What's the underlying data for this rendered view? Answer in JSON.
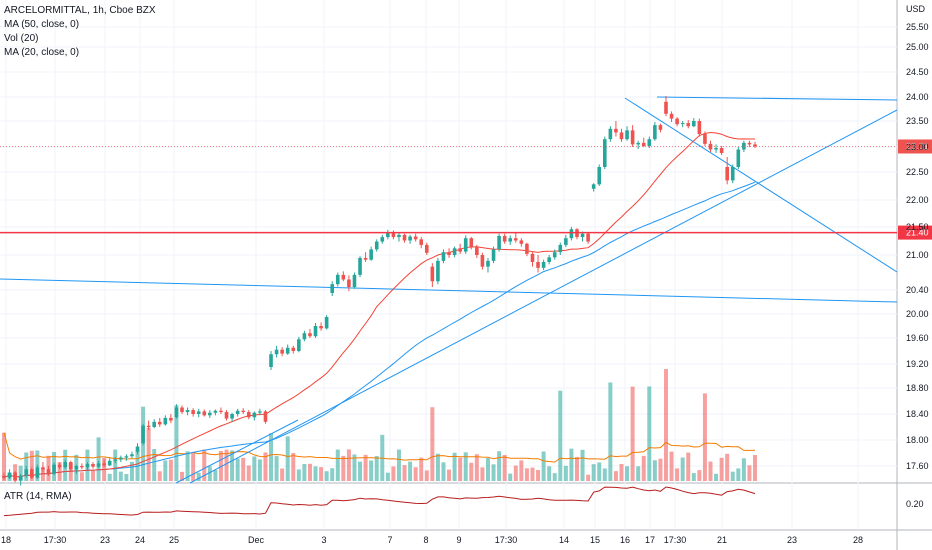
{
  "legend": {
    "symbol": "ARCELORMITTAL, 1h, Cboe BZX",
    "ma50": "MA (50, close, 0)",
    "vol": "Vol (20)",
    "ma20": "MA (20, close, 0)",
    "atr": "ATR (14, RMA)"
  },
  "chart_data": {
    "type": "candlestick",
    "currency": "USD",
    "y_ticks": [
      "25.50",
      "25.00",
      "24.50",
      "24.00",
      "23.50",
      "23.00",
      "22.50",
      "22.00",
      "21.50",
      "21.00",
      "20.40",
      "20.00",
      "19.60",
      "19.20",
      "18.80",
      "18.40",
      "18.00",
      "17.60"
    ],
    "y_tick_values": [
      25.5,
      25.0,
      24.5,
      24.0,
      23.5,
      23.0,
      22.5,
      22.0,
      21.5,
      21.0,
      20.4,
      20.0,
      19.6,
      19.2,
      18.8,
      18.4,
      18.0,
      17.6
    ],
    "atr_tick": "0.20",
    "x_labels": [
      "18",
      "17:30",
      "23",
      "24",
      "25",
      "Dec",
      "3",
      "7",
      "8",
      "9",
      "17:30",
      "14",
      "15",
      "16",
      "17",
      "17:30",
      "21",
      "23",
      "28"
    ],
    "last_price": {
      "label": "23.01",
      "value": 23.01,
      "color": "#ef5350"
    },
    "level": {
      "label": "21.40",
      "value": 21.4,
      "color": "#f23645"
    },
    "colors": {
      "up": "#26a69a",
      "down": "#ef5350",
      "ma": "#2196f3",
      "ma20": "#f44336",
      "vol_ma": "#f57c00",
      "atr": "#b71c1c"
    },
    "candles": [
      [
        17.45,
        17.5,
        17.38,
        17.42
      ],
      [
        17.42,
        17.55,
        17.4,
        17.5
      ],
      [
        17.5,
        17.52,
        17.35,
        17.38
      ],
      [
        17.38,
        17.48,
        17.3,
        17.45
      ],
      [
        17.45,
        17.6,
        17.42,
        17.55
      ],
      [
        17.55,
        17.58,
        17.4,
        17.42
      ],
      [
        17.42,
        17.62,
        17.4,
        17.58
      ],
      [
        17.58,
        17.66,
        17.5,
        17.55
      ],
      [
        17.55,
        17.6,
        17.45,
        17.48
      ],
      [
        17.48,
        17.65,
        17.46,
        17.62
      ],
      [
        17.62,
        17.65,
        17.55,
        17.58
      ],
      [
        17.58,
        17.7,
        17.56,
        17.66
      ],
      [
        17.66,
        17.68,
        17.52,
        17.55
      ],
      [
        17.55,
        17.62,
        17.48,
        17.6
      ],
      [
        17.6,
        17.64,
        17.55,
        17.58
      ],
      [
        17.58,
        17.66,
        17.54,
        17.63
      ],
      [
        17.63,
        17.66,
        17.56,
        17.59
      ],
      [
        17.59,
        17.68,
        17.57,
        17.64
      ],
      [
        17.64,
        17.7,
        17.58,
        17.61
      ],
      [
        17.61,
        17.72,
        17.6,
        17.68
      ],
      [
        17.68,
        17.74,
        17.64,
        17.7
      ],
      [
        17.7,
        17.76,
        17.66,
        17.73
      ],
      [
        17.73,
        17.78,
        17.68,
        17.75
      ],
      [
        17.75,
        17.82,
        17.72,
        17.78
      ],
      [
        17.82,
        17.95,
        17.78,
        17.9
      ],
      [
        17.95,
        18.25,
        17.92,
        18.22
      ],
      [
        18.22,
        18.3,
        18.15,
        18.2
      ],
      [
        18.2,
        18.32,
        18.18,
        18.28
      ],
      [
        18.28,
        18.34,
        18.2,
        18.24
      ],
      [
        18.24,
        18.38,
        18.22,
        18.34
      ],
      [
        18.34,
        18.4,
        18.26,
        18.3
      ],
      [
        18.35,
        18.55,
        18.33,
        18.5
      ],
      [
        18.5,
        18.53,
        18.4,
        18.43
      ],
      [
        18.43,
        18.5,
        18.38,
        18.46
      ],
      [
        18.46,
        18.49,
        18.36,
        18.4
      ],
      [
        18.4,
        18.48,
        18.35,
        18.44
      ],
      [
        18.44,
        18.47,
        18.36,
        18.38
      ],
      [
        18.38,
        18.46,
        18.34,
        18.42
      ],
      [
        18.42,
        18.47,
        18.38,
        18.45
      ],
      [
        18.45,
        18.5,
        18.4,
        18.43
      ],
      [
        18.43,
        18.46,
        18.3,
        18.33
      ],
      [
        18.33,
        18.42,
        18.28,
        18.4
      ],
      [
        18.4,
        18.48,
        18.36,
        18.45
      ],
      [
        18.45,
        18.49,
        18.4,
        18.43
      ],
      [
        18.43,
        18.46,
        18.32,
        18.35
      ],
      [
        18.35,
        18.44,
        18.3,
        18.42
      ],
      [
        18.42,
        18.48,
        18.38,
        18.44
      ],
      [
        18.44,
        18.46,
        18.25,
        18.28
      ],
      [
        19.15,
        19.4,
        19.1,
        19.35
      ],
      [
        19.35,
        19.48,
        19.3,
        19.42
      ],
      [
        19.42,
        19.46,
        19.32,
        19.36
      ],
      [
        19.36,
        19.5,
        19.34,
        19.45
      ],
      [
        19.45,
        19.48,
        19.36,
        19.4
      ],
      [
        19.4,
        19.62,
        19.38,
        19.58
      ],
      [
        19.58,
        19.72,
        19.55,
        19.68
      ],
      [
        19.68,
        19.75,
        19.6,
        19.63
      ],
      [
        19.63,
        19.85,
        19.6,
        19.8
      ],
      [
        19.8,
        19.86,
        19.72,
        19.76
      ],
      [
        19.76,
        19.98,
        19.74,
        19.95
      ],
      [
        20.35,
        20.55,
        20.3,
        20.5
      ],
      [
        20.5,
        20.7,
        20.46,
        20.66
      ],
      [
        20.66,
        20.72,
        20.55,
        20.58
      ],
      [
        20.58,
        20.65,
        20.38,
        20.45
      ],
      [
        20.45,
        20.7,
        20.42,
        20.66
      ],
      [
        20.66,
        20.98,
        20.62,
        20.95
      ],
      [
        20.95,
        21.05,
        20.88,
        20.92
      ],
      [
        20.92,
        21.15,
        20.9,
        21.1
      ],
      [
        21.1,
        21.28,
        21.06,
        21.24
      ],
      [
        21.24,
        21.36,
        21.2,
        21.32
      ],
      [
        21.32,
        21.45,
        21.28,
        21.4
      ],
      [
        21.4,
        21.44,
        21.28,
        21.32
      ],
      [
        21.32,
        21.4,
        21.24,
        21.36
      ],
      [
        21.36,
        21.38,
        21.22,
        21.26
      ],
      [
        21.26,
        21.36,
        21.2,
        21.33
      ],
      [
        21.33,
        21.38,
        21.24,
        21.28
      ],
      [
        21.28,
        21.32,
        21.12,
        21.18
      ],
      [
        21.18,
        21.22,
        21.0,
        21.04
      ],
      [
        20.8,
        20.86,
        20.45,
        20.55
      ],
      [
        20.55,
        20.95,
        20.5,
        20.9
      ],
      [
        20.9,
        21.1,
        20.86,
        21.05
      ],
      [
        21.05,
        21.12,
        20.95,
        21.0
      ],
      [
        21.0,
        21.15,
        20.96,
        21.12
      ],
      [
        21.12,
        21.2,
        21.02,
        21.06
      ],
      [
        21.06,
        21.35,
        21.02,
        21.3
      ],
      [
        21.3,
        21.32,
        21.1,
        21.14
      ],
      [
        21.14,
        21.18,
        20.95,
        21.0
      ],
      [
        21.0,
        21.04,
        20.75,
        20.8
      ],
      [
        20.8,
        20.95,
        20.7,
        20.9
      ],
      [
        20.9,
        21.15,
        20.86,
        21.1
      ],
      [
        21.1,
        21.38,
        21.06,
        21.34
      ],
      [
        21.34,
        21.38,
        21.2,
        21.24
      ],
      [
        21.24,
        21.35,
        21.18,
        21.3
      ],
      [
        21.3,
        21.4,
        21.22,
        21.26
      ],
      [
        21.26,
        21.3,
        21.15,
        21.2
      ],
      [
        21.2,
        21.22,
        20.98,
        21.02
      ],
      [
        21.02,
        21.05,
        20.8,
        20.88
      ],
      [
        20.88,
        21.0,
        20.7,
        20.78
      ],
      [
        20.78,
        20.92,
        20.74,
        20.88
      ],
      [
        20.88,
        21.0,
        20.84,
        20.96
      ],
      [
        20.96,
        21.1,
        20.92,
        21.05
      ],
      [
        21.05,
        21.22,
        21.0,
        21.18
      ],
      [
        21.18,
        21.36,
        21.14,
        21.3
      ],
      [
        21.3,
        21.5,
        21.26,
        21.46
      ],
      [
        21.46,
        21.48,
        21.28,
        21.32
      ],
      [
        21.32,
        21.42,
        21.24,
        21.38
      ],
      [
        21.38,
        21.4,
        21.2,
        21.24
      ],
      [
        22.2,
        22.3,
        22.15,
        22.28
      ],
      [
        22.28,
        22.65,
        22.25,
        22.6
      ],
      [
        22.6,
        23.2,
        22.56,
        23.15
      ],
      [
        23.15,
        23.4,
        23.1,
        23.35
      ],
      [
        23.35,
        23.5,
        23.2,
        23.28
      ],
      [
        23.28,
        23.35,
        23.1,
        23.15
      ],
      [
        23.15,
        23.4,
        23.12,
        23.32
      ],
      [
        23.32,
        23.42,
        23.0,
        23.05
      ],
      [
        23.05,
        23.12,
        22.96,
        23.08
      ],
      [
        23.08,
        23.18,
        23.0,
        23.02
      ],
      [
        23.02,
        23.2,
        22.98,
        23.15
      ],
      [
        23.15,
        23.48,
        23.12,
        23.42
      ],
      [
        23.42,
        23.45,
        23.28,
        23.33
      ],
      [
        23.9,
        24.02,
        23.6,
        23.65
      ],
      [
        23.65,
        23.7,
        23.48,
        23.55
      ],
      [
        23.55,
        23.58,
        23.4,
        23.44
      ],
      [
        23.44,
        23.5,
        23.38,
        23.46
      ],
      [
        23.46,
        23.52,
        23.36,
        23.4
      ],
      [
        23.4,
        23.56,
        23.38,
        23.5
      ],
      [
        23.5,
        23.55,
        23.2,
        23.25
      ],
      [
        23.25,
        23.3,
        23.02,
        23.06
      ],
      [
        23.06,
        23.12,
        22.9,
        22.95
      ],
      [
        22.95,
        23.05,
        22.88,
        22.98
      ],
      [
        22.98,
        23.02,
        22.84,
        22.88
      ],
      [
        22.6,
        22.8,
        22.28,
        22.35
      ],
      [
        22.35,
        22.65,
        22.3,
        22.6
      ],
      [
        22.6,
        23.0,
        22.56,
        22.95
      ],
      [
        22.95,
        23.12,
        22.9,
        23.08
      ],
      [
        23.08,
        23.12,
        23.0,
        23.05
      ],
      [
        23.05,
        23.1,
        22.98,
        23.01
      ]
    ]
  }
}
